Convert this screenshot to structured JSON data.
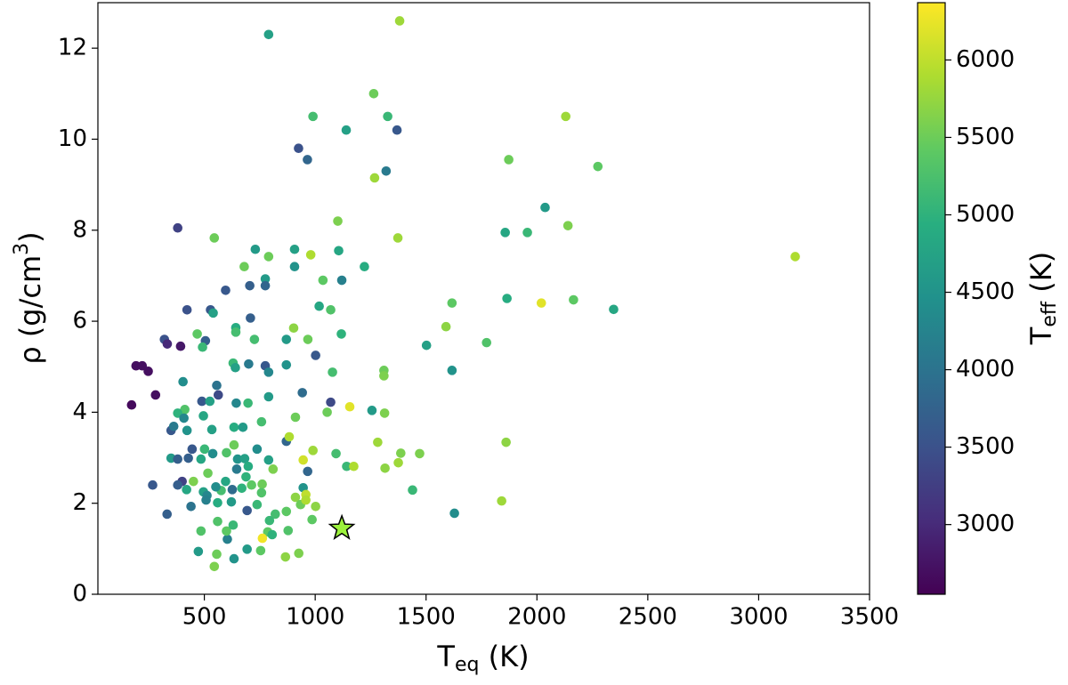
{
  "chart_data": {
    "type": "scatter",
    "xlabel": [
      "T",
      "eq",
      " (K)"
    ],
    "ylabel": [
      "ρ (g/cm",
      "3",
      ")"
    ],
    "colorbar_label": [
      "T",
      "eff",
      " (K)"
    ],
    "colormap": "viridis",
    "xlim": [
      20,
      3500
    ],
    "xticks": [
      500,
      1000,
      1500,
      2000,
      2500,
      3000,
      3500
    ],
    "ylim": [
      0,
      13
    ],
    "yticks": [
      0,
      2,
      4,
      6,
      8,
      10,
      12
    ],
    "clim": [
      2550,
      6370
    ],
    "cticks": [
      3000,
      3500,
      4000,
      4500,
      5000,
      5500,
      6000
    ],
    "series": [
      {
        "x": [
          1381,
          790,
          1264,
          990,
          1327,
          1140,
          1369,
          925,
          965,
          1320,
          1268,
          2130,
          1873,
          2275,
          2037,
          1857,
          1957,
          2140,
          3165,
          1102,
          1373,
          380,
          545,
          730,
          907,
          790,
          980,
          1106,
          680,
          907,
          1222,
          1035,
          1120,
          775,
          775,
          705,
          596,
          1865,
          1617,
          2165,
          2346,
          2020,
          1018,
          1070,
          422,
          528,
          540,
          708,
          320,
          333,
          393,
          505,
          642,
          726,
          903,
          967,
          870,
          1118,
          642,
          468,
          492,
          1502,
          1773,
          1590,
          1617,
          1310,
          1310,
          192,
          220,
          247,
          280,
          172,
          404,
          630,
          640,
          700,
          775,
          870,
          1002,
          1078,
          556,
          563,
          790,
          790,
          942,
          1070,
          1156,
          1054,
          1313,
          1256,
          489,
          525,
          644,
          697,
          412,
          380,
          496,
          408,
          350,
          362,
          422,
          534,
          634,
          674,
          758,
          911,
          870,
          883,
          538,
          634,
          600,
          445,
          501,
          350,
          380,
          428,
          485,
          650,
          738,
          646,
          682,
          698,
          790,
          810,
          946,
          990,
          1094,
          1142,
          1174,
          1282,
          1315,
          1375,
          1386,
          1471,
          1861,
          966,
          516,
          688,
          451,
          400,
          380,
          596,
          576,
          420,
          496,
          512,
          552,
          626,
          669,
          713,
          761,
          267,
          758,
          946,
          958,
          911,
          934,
          958,
          1002,
          508,
          560,
          622,
          738,
          1439,
          1628,
          1841,
          332,
          440,
          693,
          870,
          820,
          794,
          986,
          878,
          786,
          806,
          762,
          604,
          600,
          485,
          560,
          630,
          693,
          754,
          473,
          634,
          545,
          556,
          866,
          926
        ],
        "values": [
          12.6,
          12.3,
          11.0,
          10.5,
          10.5,
          10.2,
          10.2,
          9.8,
          9.55,
          9.3,
          9.15,
          10.5,
          9.55,
          9.4,
          8.5,
          7.95,
          7.95,
          8.1,
          7.42,
          8.2,
          7.83,
          8.05,
          7.83,
          7.58,
          7.58,
          7.42,
          7.46,
          7.55,
          7.2,
          7.2,
          7.2,
          6.9,
          6.9,
          6.93,
          6.78,
          6.78,
          6.68,
          6.5,
          6.4,
          6.47,
          6.26,
          6.4,
          6.33,
          6.25,
          6.25,
          6.25,
          6.18,
          6.07,
          5.6,
          5.5,
          5.45,
          5.57,
          5.86,
          5.6,
          5.85,
          5.6,
          5.6,
          5.72,
          5.76,
          5.72,
          5.43,
          5.47,
          5.53,
          5.88,
          4.92,
          4.92,
          4.8,
          5.02,
          5.02,
          4.9,
          4.38,
          4.16,
          4.67,
          5.08,
          4.98,
          5.06,
          5.02,
          5.04,
          5.25,
          4.88,
          4.59,
          4.38,
          4.88,
          4.34,
          4.43,
          4.22,
          4.12,
          4.0,
          3.98,
          4.04,
          4.24,
          4.24,
          4.2,
          4.2,
          4.06,
          3.98,
          3.92,
          3.87,
          3.6,
          3.69,
          3.6,
          3.62,
          3.67,
          3.67,
          3.79,
          3.89,
          3.36,
          3.46,
          3.09,
          3.28,
          3.11,
          3.19,
          3.19,
          2.99,
          2.97,
          2.99,
          2.97,
          2.97,
          3.19,
          2.75,
          2.98,
          2.81,
          2.95,
          2.75,
          2.95,
          3.16,
          3.09,
          2.81,
          2.81,
          3.34,
          2.77,
          2.89,
          3.1,
          3.09,
          3.34,
          2.7,
          2.66,
          2.58,
          2.48,
          2.48,
          2.4,
          2.48,
          2.28,
          2.3,
          2.25,
          2.17,
          2.36,
          2.3,
          2.33,
          2.4,
          2.42,
          2.4,
          2.23,
          2.34,
          2.19,
          2.13,
          1.97,
          2.07,
          1.93,
          2.07,
          2.01,
          2.03,
          1.97,
          2.29,
          1.78,
          2.05,
          1.76,
          1.93,
          1.84,
          1.82,
          1.76,
          1.62,
          1.64,
          1.4,
          1.37,
          1.31,
          1.23,
          1.21,
          1.39,
          1.39,
          1.6,
          1.52,
          0.99,
          0.96,
          0.94,
          0.78,
          0.61,
          0.88,
          0.82,
          0.9
        ],
        "c": [
          5800,
          4700,
          5500,
          5200,
          5100,
          4700,
          3600,
          3500,
          3800,
          4100,
          5800,
          5800,
          5500,
          5400,
          4600,
          4800,
          5100,
          5600,
          5900,
          5600,
          5800,
          3300,
          5500,
          4600,
          4700,
          5500,
          5900,
          4800,
          5500,
          4500,
          4900,
          5400,
          4200,
          4600,
          3800,
          3700,
          3600,
          4900,
          5400,
          5400,
          4800,
          6200,
          4800,
          5300,
          3500,
          3600,
          4700,
          3700,
          3500,
          3000,
          2800,
          3700,
          4900,
          5200,
          5700,
          5500,
          4600,
          5000,
          5200,
          5400,
          5100,
          4700,
          5300,
          5700,
          4500,
          5500,
          5600,
          2700,
          2700,
          2700,
          2700,
          2650,
          4400,
          5100,
          4700,
          4100,
          3600,
          4500,
          3600,
          5200,
          4000,
          3400,
          4300,
          4600,
          3900,
          3400,
          6200,
          5500,
          5600,
          4600,
          3600,
          4700,
          4300,
          5100,
          5300,
          5000,
          4800,
          4300,
          3600,
          4100,
          4500,
          4700,
          4900,
          4600,
          5200,
          5500,
          3800,
          5900,
          4400,
          5500,
          5300,
          3600,
          5100,
          4600,
          3700,
          3700,
          4800,
          4500,
          4400,
          4100,
          4700,
          4900,
          4700,
          5600,
          6100,
          5800,
          5200,
          5100,
          5900,
          5800,
          5700,
          5800,
          5600,
          5600,
          5700,
          3800,
          5500,
          5000,
          5600,
          3300,
          3700,
          4800,
          5200,
          4800,
          4700,
          4300,
          4400,
          3900,
          5000,
          5400,
          5500,
          3600,
          5300,
          4500,
          6000,
          5700,
          5500,
          5900,
          5700,
          4200,
          4900,
          4600,
          5100,
          5100,
          4400,
          5800,
          3700,
          4000,
          3600,
          5400,
          5200,
          5100,
          5400,
          5300,
          5400,
          5000,
          6300,
          4200,
          5400,
          5300,
          5300,
          5100,
          4600,
          5400,
          4600,
          4500,
          5600,
          5500,
          5700,
          5600
        ]
      },
      {
        "marker": "star",
        "color": "#9cf23c",
        "x": [
          1120
        ],
        "values": [
          1.45
        ]
      }
    ]
  }
}
